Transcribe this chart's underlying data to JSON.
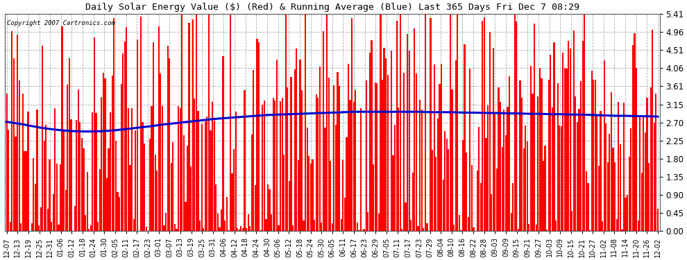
{
  "title": "Daily Solar Energy Value ($) (Red) & Running Average (Blue) Last 365 Days Fri Dec 7 08:29",
  "copyright": "Copyright 2007 Cartronics.com",
  "bar_color": "#FF0000",
  "avg_color": "#0000CC",
  "bg_color": "#FFFFFF",
  "grid_color": "#AAAAAA",
  "ylim": [
    0,
    5.41
  ],
  "yticks": [
    0.0,
    0.45,
    0.9,
    1.35,
    1.8,
    2.25,
    2.7,
    3.15,
    3.61,
    4.06,
    4.51,
    4.96,
    5.41
  ],
  "x_labels": [
    "12-07",
    "12-13",
    "12-19",
    "12-25",
    "12-31",
    "01-06",
    "01-12",
    "01-18",
    "01-24",
    "01-30",
    "02-05",
    "02-11",
    "02-17",
    "02-23",
    "03-01",
    "03-07",
    "03-13",
    "03-19",
    "03-25",
    "03-31",
    "04-06",
    "04-12",
    "04-18",
    "04-24",
    "04-30",
    "05-06",
    "05-12",
    "05-18",
    "05-24",
    "05-30",
    "06-05",
    "06-11",
    "06-17",
    "06-23",
    "06-29",
    "07-05",
    "07-11",
    "07-17",
    "07-23",
    "07-29",
    "08-04",
    "08-10",
    "08-16",
    "08-22",
    "08-28",
    "09-03",
    "09-09",
    "09-15",
    "09-21",
    "09-27",
    "10-03",
    "10-09",
    "10-15",
    "10-21",
    "10-27",
    "11-02",
    "11-08",
    "11-14",
    "11-20",
    "11-26",
    "12-02"
  ],
  "n_days": 365,
  "seed": 42,
  "avg_line_points": [
    2.72,
    2.68,
    2.63,
    2.58,
    2.54,
    2.51,
    2.49,
    2.48,
    2.48,
    2.49,
    2.51,
    2.54,
    2.57,
    2.6,
    2.64,
    2.67,
    2.7,
    2.73,
    2.76,
    2.79,
    2.81,
    2.83,
    2.85,
    2.87,
    2.89,
    2.9,
    2.91,
    2.92,
    2.93,
    2.94,
    2.95,
    2.96,
    2.97,
    2.97,
    2.97,
    2.97,
    2.97,
    2.97,
    2.97,
    2.96,
    2.96,
    2.96,
    2.95,
    2.95,
    2.94,
    2.94,
    2.93,
    2.93,
    2.92,
    2.92,
    2.91,
    2.91,
    2.9,
    2.9,
    2.89,
    2.88,
    2.87,
    2.87,
    2.86,
    2.86,
    2.85
  ]
}
